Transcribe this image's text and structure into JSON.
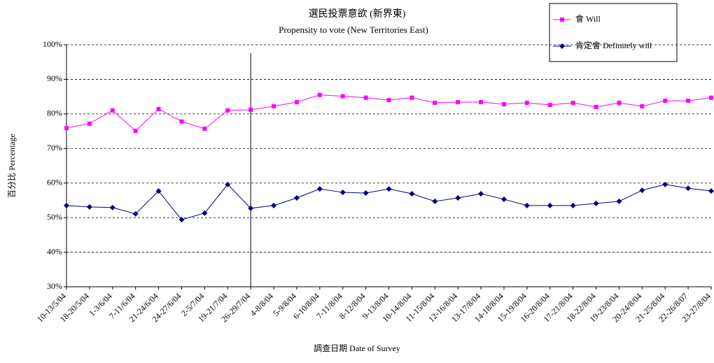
{
  "chart_data": {
    "type": "line",
    "title": "選民投票意欲 (新界東)",
    "subtitle": "Propensity to vote (New Territories East)",
    "x_label": "調查日期 Date of Survey",
    "y_label": "百分比 Percentage",
    "categories": [
      "10-13/5/04",
      "18-20/5/04",
      "1-3/6/04",
      "7-11/6/04",
      "21-24/6/04",
      "24-27/6/04",
      "2-5/7/04",
      "19-21/7/04",
      "26-29/7/04",
      "4-8/8/04",
      "5-9/8/04",
      "6-10/8/04",
      "7-11/8/04",
      "8-12/8/04",
      "9-13/8/04",
      "10-14/8/04",
      "11-15/8/04",
      "12-16/8/04",
      "13-17/8/04",
      "14-18/8/04",
      "15-19/8/04",
      "16-20/8/04",
      "17-21/8/04",
      "18-22/8/04",
      "19-23/8/04",
      "20-24/8/04",
      "21-25/8/04",
      "22-26/8/07",
      "23-27/8/04"
    ],
    "series": [
      {
        "name": "會 Will",
        "color": "#ff00ff",
        "marker": "square",
        "values": [
          75.9,
          77.2,
          81.0,
          75.1,
          81.4,
          77.8,
          75.7,
          81.0,
          81.2,
          82.2,
          83.4,
          85.5,
          85.1,
          84.7,
          84.0,
          84.7,
          83.2,
          83.4,
          83.4,
          82.8,
          83.2,
          82.6,
          83.2,
          82.0,
          83.2,
          82.2,
          83.8,
          83.8,
          84.7
        ]
      },
      {
        "name": "肯定會 Definitely will",
        "color": "#000080",
        "marker": "diamond",
        "values": [
          53.5,
          53.1,
          52.9,
          51.1,
          57.7,
          49.4,
          51.3,
          59.6,
          52.7,
          53.5,
          55.7,
          58.3,
          57.3,
          57.1,
          58.3,
          56.9,
          54.7,
          55.7,
          56.9,
          55.3,
          53.5,
          53.5,
          53.5,
          54.1,
          54.7,
          57.9,
          59.6,
          58.5,
          57.7
        ]
      }
    ],
    "ylim": [
      30,
      100
    ],
    "yticks": [
      {
        "value": 30,
        "label": "30%"
      },
      {
        "value": 40,
        "label": "40%"
      },
      {
        "value": 50,
        "label": "50%"
      },
      {
        "value": 60,
        "label": "60%"
      },
      {
        "value": 70,
        "label": "70%"
      },
      {
        "value": 80,
        "label": "80%"
      },
      {
        "value": 90,
        "label": "90%"
      },
      {
        "value": 100,
        "label": "100%"
      }
    ],
    "grid": true,
    "legend": "top-right"
  }
}
